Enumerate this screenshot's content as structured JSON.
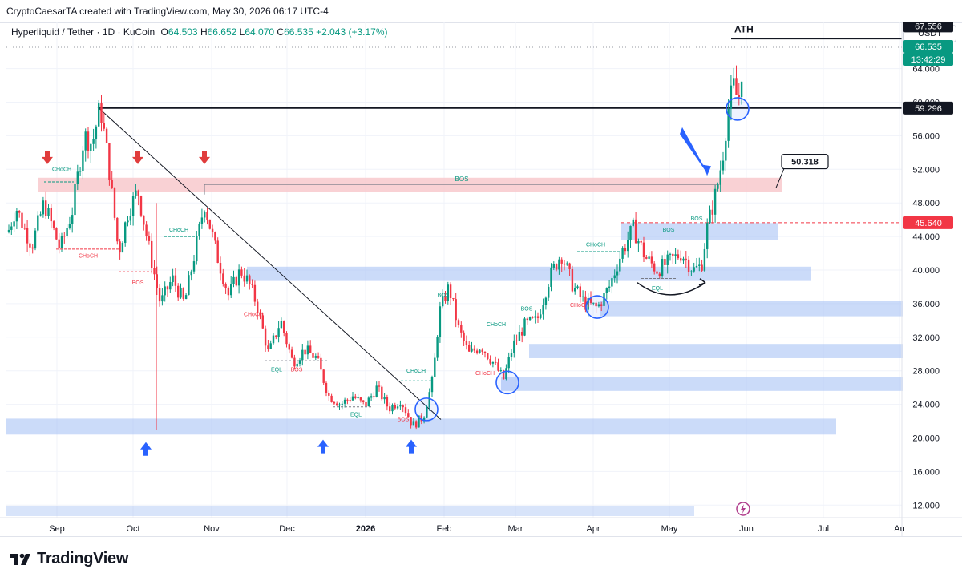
{
  "header": {
    "credit": "CryptoCaesarTA created with TradingView.com, May 30, 2026 06:17 UTC-4",
    "symbol": "Hyperliquid / Tether · 1D · KuCoin",
    "open_label": "O",
    "open": "64.503",
    "high_label": "H",
    "high": "66.652",
    "low_label": "L",
    "low": "64.070",
    "close_label": "C",
    "close": "66.535",
    "change": "+2.043 (+3.17%)",
    "currency": "USDT"
  },
  "brand": {
    "name": "TradingView"
  },
  "colors": {
    "up": "#089981",
    "down": "#f23645",
    "zone_blue": "#a9c3f5",
    "zone_red": "#f7c5c9",
    "arrow_red": "#e03c3c",
    "arrow_blue": "#2962ff",
    "grid": "#f0f3fa"
  },
  "chart_data": {
    "type": "candlestick",
    "y_ticks": [
      "64.000",
      "60.000",
      "56.000",
      "52.000",
      "48.000",
      "44.000",
      "40.000",
      "36.000",
      "32.000",
      "28.000",
      "24.000",
      "20.000",
      "16.000",
      "12.000"
    ],
    "ylim": [
      10.5,
      69.5
    ],
    "x_ticks": [
      "Sep",
      "Oct",
      "Nov",
      "Dec",
      "2026",
      "Feb",
      "Mar",
      "Apr",
      "May",
      "Jun",
      "Jul",
      "Au"
    ],
    "price_labels": [
      {
        "text": "67.556",
        "value": 67.556,
        "style": "black"
      },
      {
        "text": "66.535",
        "value": 66.535,
        "style": "green"
      },
      {
        "text": "13:42:29",
        "value": 66.535,
        "style": "green-sub"
      },
      {
        "text": "59.296",
        "value": 59.296,
        "style": "black"
      },
      {
        "text": "45.640",
        "value": 45.64,
        "style": "red"
      }
    ],
    "annotations": {
      "ath": "ATH",
      "target_box": "50.318",
      "bos": "BOS",
      "choch": "CHoCH",
      "eql": "EQL"
    },
    "key_levels": [
      {
        "name": "ath",
        "value": 67.556
      },
      {
        "name": "resistance",
        "value": 59.296
      },
      {
        "name": "breakout",
        "value": 45.64
      }
    ],
    "zones": [
      {
        "kind": "supply",
        "from": 49.3,
        "to": 51.0
      },
      {
        "kind": "demand",
        "from": 20.4,
        "to": 22.3
      },
      {
        "kind": "demand",
        "from": 38.7,
        "to": 40.4
      },
      {
        "kind": "demand",
        "from": 43.6,
        "to": 45.6
      },
      {
        "kind": "demand",
        "from": 34.5,
        "to": 36.3
      },
      {
        "kind": "demand",
        "from": 29.5,
        "to": 31.2
      },
      {
        "kind": "demand",
        "from": 25.6,
        "to": 27.3
      }
    ]
  }
}
